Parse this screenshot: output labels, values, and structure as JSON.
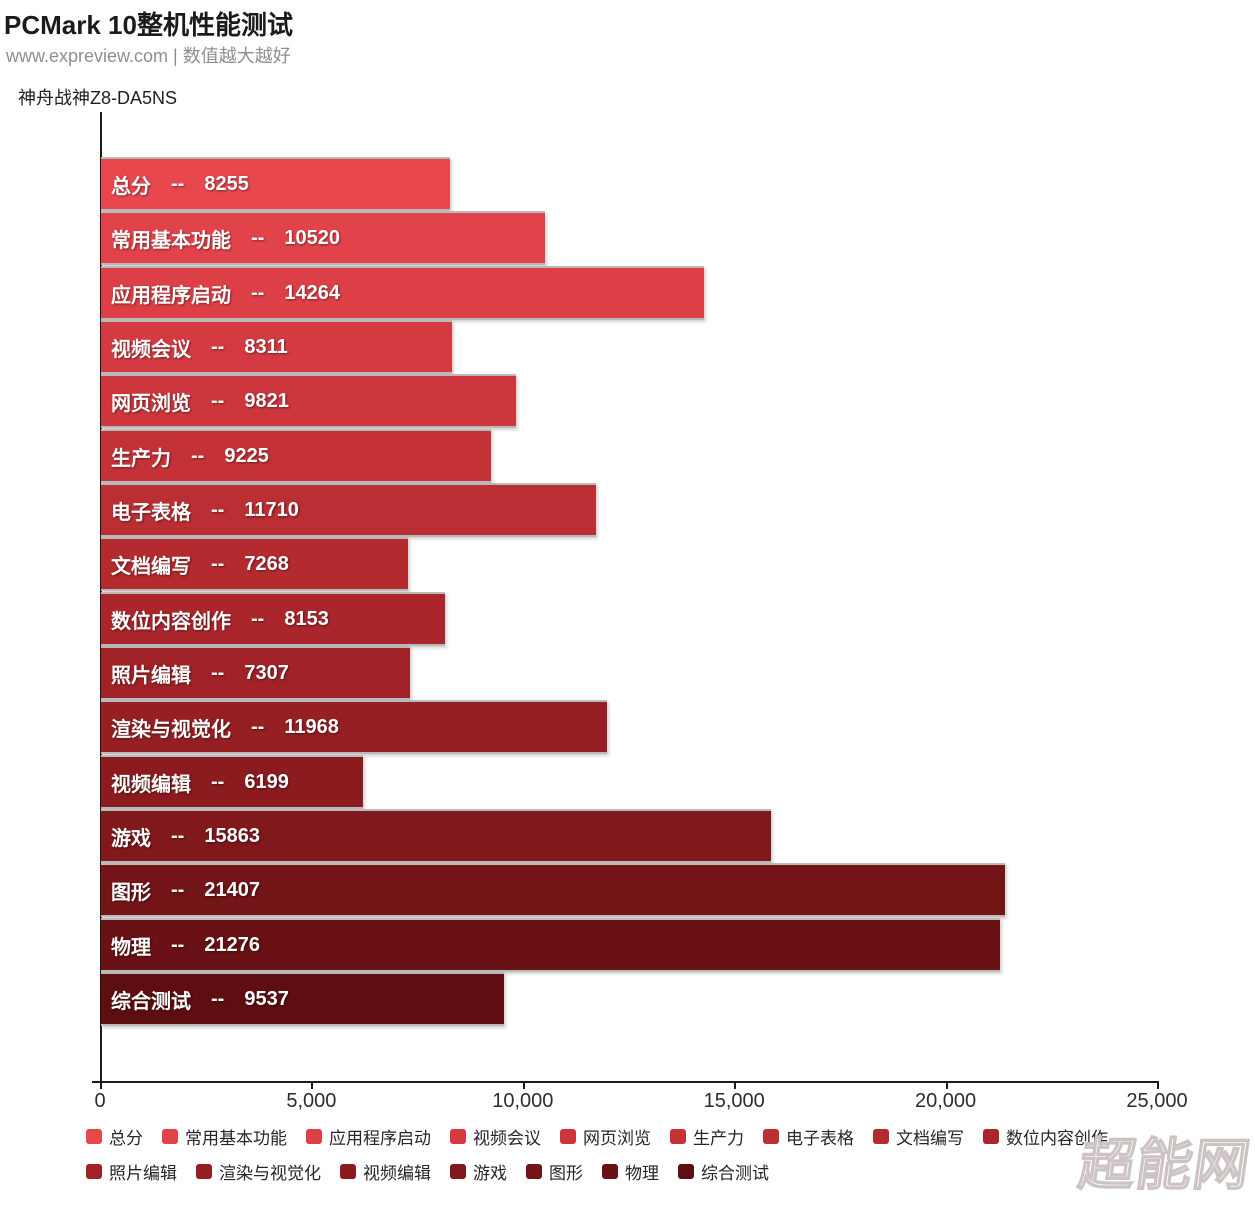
{
  "header": {
    "title": "PCMark 10整机性能测试",
    "subtitle": "www.expreview.com | 数值越大越好"
  },
  "series_label": "神舟战神Z8-DA5NS",
  "watermark": "超能网",
  "chart_data": {
    "type": "bar",
    "orientation": "horizontal",
    "title": "PCMark 10整机性能测试",
    "note": "数值越大越好",
    "categories": [
      "总分",
      "常用基本功能",
      "应用程序启动",
      "视频会议",
      "网页浏览",
      "生产力",
      "电子表格",
      "文档编写",
      "数位内容创作",
      "照片编辑",
      "渲染与视觉化",
      "视频编辑",
      "游戏",
      "图形",
      "物理",
      "综合测试"
    ],
    "values": [
      8255,
      10520,
      14264,
      8311,
      9821,
      9225,
      11710,
      7268,
      8153,
      7307,
      11968,
      6199,
      15863,
      21407,
      21276,
      9537
    ],
    "separator": "--",
    "xlim": [
      0,
      25000
    ],
    "x_ticks": [
      {
        "value": 0,
        "label": "0"
      },
      {
        "value": 5000,
        "label": "5,000"
      },
      {
        "value": 10000,
        "label": "10,000"
      },
      {
        "value": 15000,
        "label": "15,000"
      },
      {
        "value": 20000,
        "label": "20,000"
      },
      {
        "value": 25000,
        "label": "25,000"
      }
    ],
    "bar_colors": [
      "#e8474e",
      "#e2434a",
      "#dc3f45",
      "#d43a41",
      "#cc363c",
      "#c43237",
      "#bb2e33",
      "#b32a2f",
      "#aa262b",
      "#a02227",
      "#961f23",
      "#8b1b1f",
      "#80181c",
      "#741518",
      "#691114",
      "#5e0e11"
    ],
    "grid": false,
    "legend_position": "bottom",
    "legend_rows": [
      [
        "总分",
        "常用基本功能",
        "应用程序启动",
        "视频会议",
        "网页浏览",
        "生产力",
        "电子表格",
        "文档编写",
        "数位内容创作"
      ],
      [
        "照片编辑",
        "渲染与视觉化",
        "视频编辑",
        "游戏",
        "图形",
        "物理",
        "综合测试"
      ]
    ],
    "colors": {
      "axis": "#1a1a1a",
      "bar_text": "#ffffff",
      "separator_line": "#b9b9b9",
      "tick_label": "#2d2d2d",
      "watermark_outline": "#cdc3c3"
    }
  }
}
